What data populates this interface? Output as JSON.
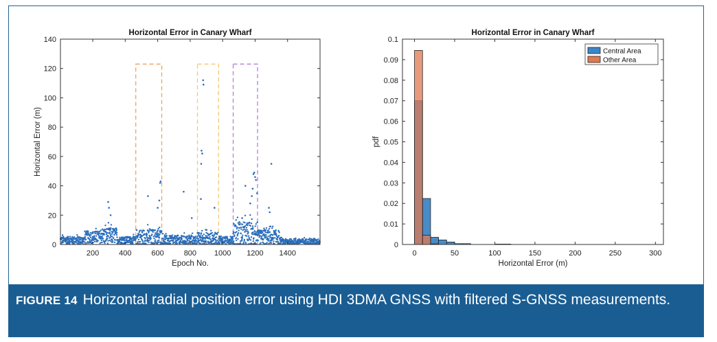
{
  "caption": {
    "label": "FIGURE 14",
    "text": "Horizontal radial position error using HDI 3DMA GNSS with filtered S-GNSS measurements."
  },
  "chart_data": [
    {
      "type": "scatter",
      "title": "Horizontal Error in Canary Wharf",
      "xlabel": "Epoch No.",
      "ylabel": "Horizontal Error (m)",
      "xlim": [
        1,
        1600
      ],
      "ylim": [
        0,
        140
      ],
      "xticks": [
        200,
        400,
        600,
        800,
        1000,
        1200,
        1400
      ],
      "yticks": [
        0,
        20,
        40,
        60,
        80,
        100,
        120,
        140
      ],
      "grid": false,
      "color": "#2a6ebb",
      "regions": [
        {
          "x": [
            465,
            625
          ],
          "y": [
            0,
            123
          ],
          "color": "#f0a060"
        },
        {
          "x": [
            845,
            975
          ],
          "y": [
            0,
            123
          ],
          "color": "#f5c870"
        },
        {
          "x": [
            1065,
            1215
          ],
          "y": [
            0,
            123
          ],
          "color": "#b080d8"
        }
      ],
      "baseline_profile": [
        {
          "x": [
            1,
            150
          ],
          "mean": 3,
          "spread": 4
        },
        {
          "x": [
            150,
            250
          ],
          "mean": 5,
          "spread": 7
        },
        {
          "x": [
            250,
            350
          ],
          "mean": 6,
          "spread": 9
        },
        {
          "x": [
            350,
            465
          ],
          "mean": 3,
          "spread": 4
        },
        {
          "x": [
            465,
            625
          ],
          "mean": 5,
          "spread": 9
        },
        {
          "x": [
            625,
            845
          ],
          "mean": 3,
          "spread": 5
        },
        {
          "x": [
            845,
            975
          ],
          "mean": 4,
          "spread": 7
        },
        {
          "x": [
            975,
            1065
          ],
          "mean": 3,
          "spread": 4
        },
        {
          "x": [
            1065,
            1215
          ],
          "mean": 7,
          "spread": 14
        },
        {
          "x": [
            1215,
            1350
          ],
          "mean": 5,
          "spread": 8
        },
        {
          "x": [
            1350,
            1600
          ],
          "mean": 2,
          "spread": 3
        }
      ],
      "outliers": [
        {
          "x": 295,
          "y": 29
        },
        {
          "x": 300,
          "y": 25
        },
        {
          "x": 310,
          "y": 20
        },
        {
          "x": 540,
          "y": 33
        },
        {
          "x": 600,
          "y": 25
        },
        {
          "x": 610,
          "y": 30
        },
        {
          "x": 615,
          "y": 42
        },
        {
          "x": 618,
          "y": 43
        },
        {
          "x": 760,
          "y": 36
        },
        {
          "x": 810,
          "y": 18
        },
        {
          "x": 880,
          "y": 112
        },
        {
          "x": 882,
          "y": 109
        },
        {
          "x": 870,
          "y": 64
        },
        {
          "x": 874,
          "y": 62
        },
        {
          "x": 868,
          "y": 55
        },
        {
          "x": 866,
          "y": 31
        },
        {
          "x": 950,
          "y": 25
        },
        {
          "x": 1140,
          "y": 40
        },
        {
          "x": 1190,
          "y": 48
        },
        {
          "x": 1195,
          "y": 49
        },
        {
          "x": 1200,
          "y": 46
        },
        {
          "x": 1205,
          "y": 44
        },
        {
          "x": 1185,
          "y": 38
        },
        {
          "x": 1180,
          "y": 33
        },
        {
          "x": 1170,
          "y": 28
        },
        {
          "x": 1212,
          "y": 35
        },
        {
          "x": 1300,
          "y": 55
        },
        {
          "x": 1285,
          "y": 25
        },
        {
          "x": 1290,
          "y": 22
        },
        {
          "x": 1120,
          "y": 18
        }
      ]
    },
    {
      "type": "bar",
      "title": "Horizontal Error in Canary Wharf",
      "xlabel": "Horizontal Error (m)",
      "ylabel": "pdf",
      "xlim": [
        -15,
        310
      ],
      "ylim": [
        0,
        0.1
      ],
      "xticks": [
        0,
        50,
        100,
        150,
        200,
        250,
        300
      ],
      "yticks": [
        0,
        0.01,
        0.02,
        0.03,
        0.04,
        0.05,
        0.06,
        0.07,
        0.08,
        0.09,
        0.1
      ],
      "bin_width": 10,
      "bin_starts": [
        0,
        10,
        20,
        30,
        40,
        50,
        60,
        70,
        80,
        90,
        100,
        110
      ],
      "legend_position": "top-right",
      "series": [
        {
          "name": "Central Area",
          "color": "#3d86c6",
          "values": [
            0.07,
            0.0224,
            0.0035,
            0.0022,
            0.0012,
            0.0004,
            0.0004,
            0,
            0,
            0,
            0.0002,
            0.0002
          ]
        },
        {
          "name": "Other Area",
          "color": "#e07a50",
          "values": [
            0.0945,
            0.0045,
            0.0003,
            0,
            0,
            0,
            0,
            0,
            0,
            0,
            0,
            0
          ]
        }
      ]
    }
  ]
}
